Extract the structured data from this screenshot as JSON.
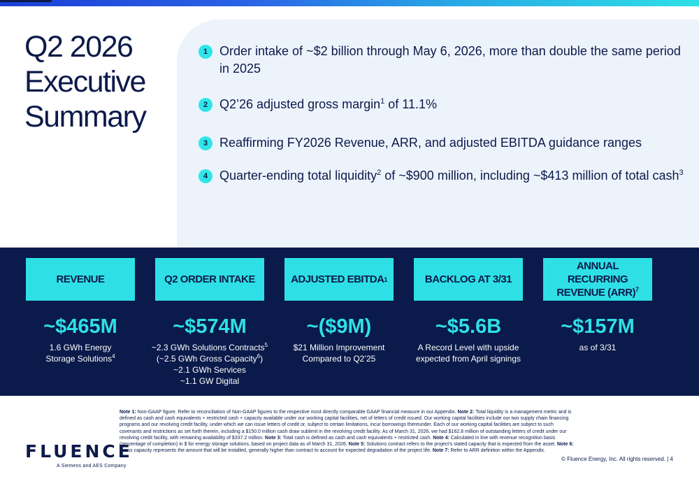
{
  "slide": {
    "title_lines": [
      "Q2 2026",
      "Executive",
      "Summary"
    ],
    "highlights": [
      {
        "num": "1",
        "text": "Order intake of ~$2 billion through May 6, 2026, more than double the same period in 2025"
      },
      {
        "num": "2",
        "text_before": "Q2’26 adjusted gross margin",
        "sup": "1",
        "text_after": " of 11.1%"
      },
      {
        "num": "3",
        "text": "Reaffirming FY2026 Revenue, ARR, and adjusted EBITDA guidance ranges"
      },
      {
        "num": "4",
        "text_a": "Quarter-ending total liquidity",
        "sup_a": "2",
        "text_b": " of ~$900 million, including ~$413 million of total cash",
        "sup_b": "3"
      }
    ],
    "metrics": [
      {
        "label": "REVENUE",
        "value": "~$465M",
        "desc": [
          "1.6 GWh Energy",
          "Storage Solutions"
        ],
        "desc_sup": "4"
      },
      {
        "label": "Q2 ORDER INTAKE",
        "value": "~$574M",
        "desc_l1": "~2.3 GWh Solutions Contracts",
        "desc_l1_sup": "5",
        "desc_l2a": "(~2.5 GWh Gross Capacity",
        "desc_l2_sup": "6",
        "desc_l2b": ")",
        "desc_l3": "~2.1 GWh Services",
        "desc_l4": "~1.1 GW Digital"
      },
      {
        "label": "ADJUSTED EBITDA",
        "label_sup": "1",
        "value": "~($9M)",
        "desc": [
          "$21 Million Improvement",
          "Compared to Q2’25"
        ]
      },
      {
        "label": "BACKLOG AT 3/31",
        "value": "~$5.6B",
        "desc": [
          "A Record Level with upside",
          "expected from April signings"
        ]
      },
      {
        "label_l1": "ANNUAL RECURRING",
        "label_l2": "REVENUE (ARR)",
        "label_sup": "7",
        "value": "~$157M",
        "desc": [
          "as of 3/31"
        ]
      }
    ],
    "notes": [
      {
        "label": "Note 1:",
        "text": " Non-GAAP figure. Refer to reconciliation of Non-GAAP figures to the respective most directly comparable GAAP financial measure in our Appendix.  "
      },
      {
        "label": "Note 2:",
        "text": " Total liquidity is a management metric and is defined as cash and cash equivalents + restricted cash + capacity available under our working capital facilities, net of letters of credit issued. Our working capital facilities include our two supply chain financing programs and our revolving credit facility, under which we can issue letters of credit or, subject to certain limitations, incur borrowings thereunder. Each of our working capital facilities are subject to such covenants and restrictions as set forth therein, including a $150.0 million cash draw sublimit in the revolving credit facility. As of March 31, 2026, we had $162.8 million of outstanding letters of credit under our revolving credit facility, with remaining availability of $337.2 million.  "
      },
      {
        "label": "Note 3:",
        "text": " Total cash is defined as cash and cash equivalents + restricted cash. "
      },
      {
        "label": "Note 4:",
        "text": " Calculated in line with revenue recognition basis (percentage of completion) in $ for energy storage solutions, based on project data as of March 31, 2026. "
      },
      {
        "label": "Note 5:",
        "text": "  Solutions contract refers to the project’s stated capacity that is expected from the asset.  "
      },
      {
        "label": "Note 6:",
        "text": " Gross capacity represents the amount that will be installed, generally higher than contract to account for expected degradation of the project life.  "
      },
      {
        "label": "Note 7:",
        "text": "  Refer to ARR definition within the Appendix."
      }
    ],
    "logo": {
      "word": "FLUENCE",
      "tagline": "A Siemens and AES Company"
    },
    "footer": "© Fluence Energy, Inc. All rights reserved. | 4"
  },
  "colors": {
    "navy": "#0c1a4a",
    "cyan": "#2ee0e6",
    "panel": "#edf3fb",
    "band": "#0a1a4a"
  }
}
